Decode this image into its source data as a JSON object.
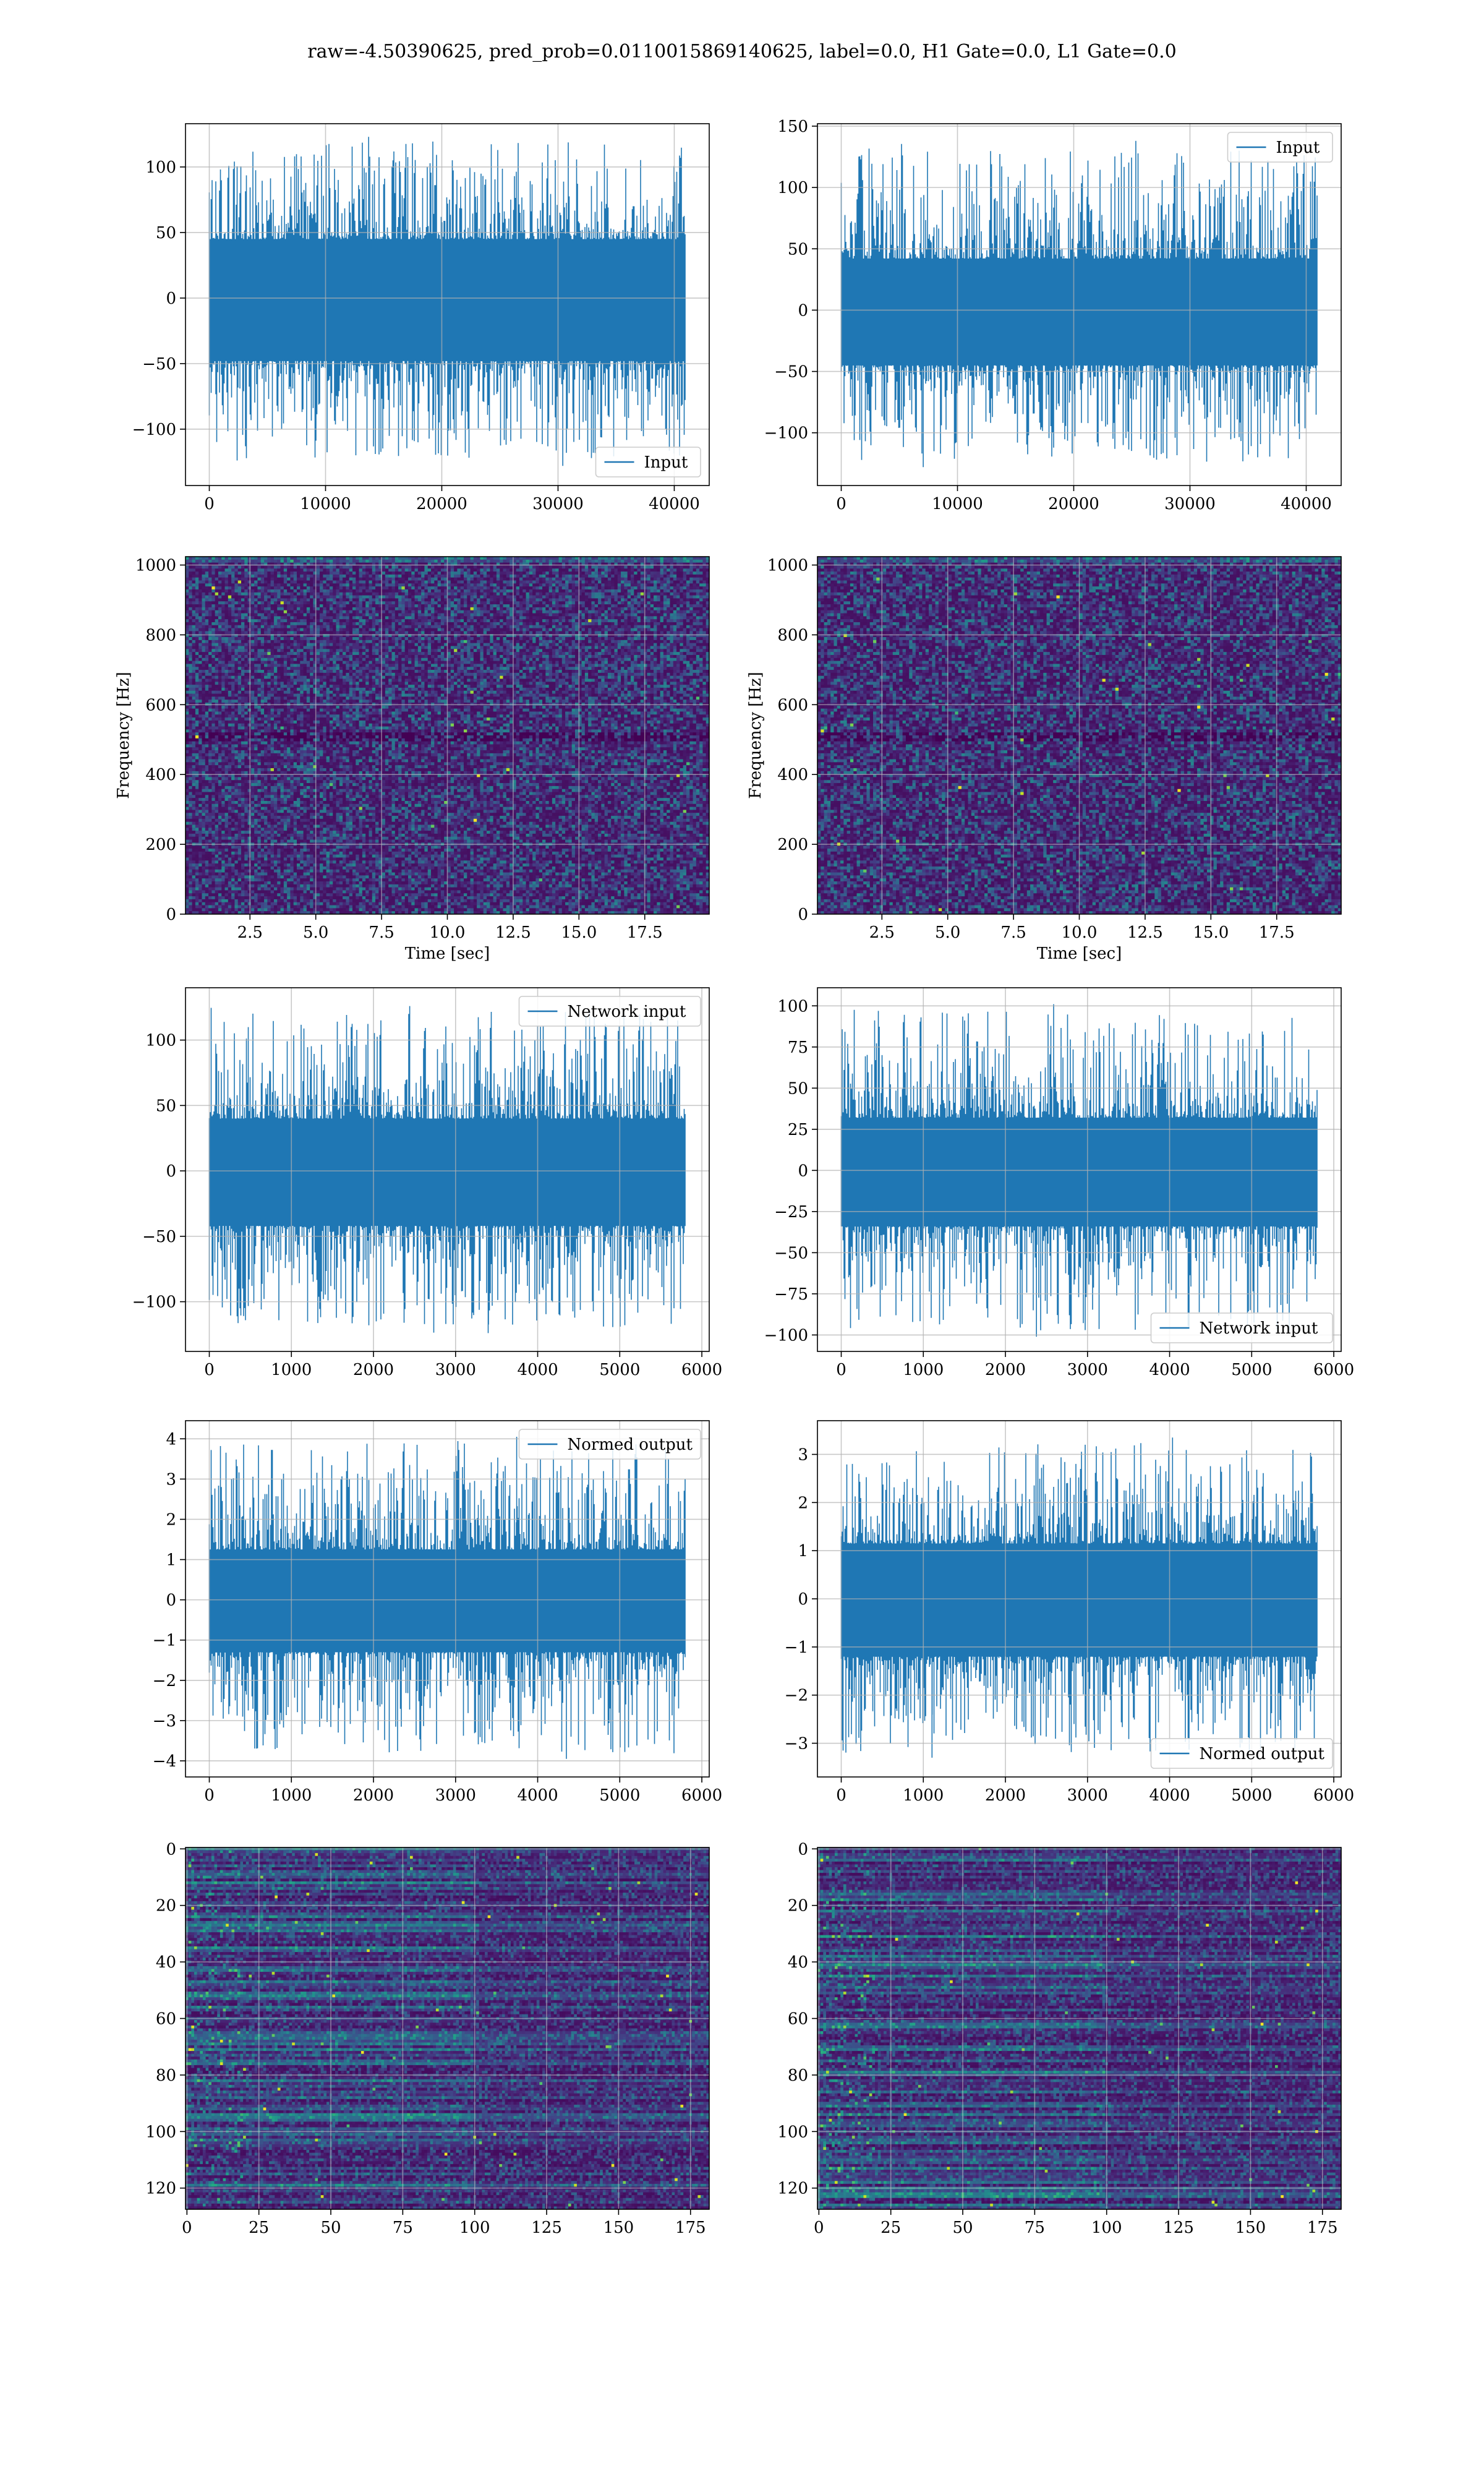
{
  "figure": {
    "suptitle": "raw=-4.50390625, pred_prob=0.0110015869140625, label=0.0, H1 Gate=0.0, L1 Gate=0.0",
    "line_color": "#1f77b4",
    "grid_color": "#b0b0b0"
  },
  "chart_data": [
    {
      "type": "line",
      "row": 1,
      "col": 1,
      "title": "",
      "xlabel": "",
      "ylabel": "",
      "xlim": [
        -2048,
        43008
      ],
      "ylim": [
        -143,
        133
      ],
      "xticks": [
        0,
        10000,
        20000,
        30000,
        40000
      ],
      "yticks": [
        -100,
        -50,
        0,
        50,
        100
      ],
      "legend": {
        "position": "lower-right",
        "entries": [
          "Input"
        ]
      },
      "grid": true,
      "series": [
        {
          "name": "Input",
          "n_points": 40960,
          "x_start": 0,
          "x_end": 40960,
          "band": [
            -48,
            45
          ],
          "peak_max": 123,
          "peak_min": -128
        }
      ]
    },
    {
      "type": "line",
      "row": 1,
      "col": 2,
      "title": "",
      "xlabel": "",
      "ylabel": "",
      "xlim": [
        -2048,
        43008
      ],
      "ylim": [
        -143,
        152
      ],
      "xticks": [
        0,
        10000,
        20000,
        30000,
        40000
      ],
      "yticks": [
        -100,
        -50,
        0,
        50,
        100,
        150
      ],
      "legend": {
        "position": "upper-right",
        "entries": [
          "Input"
        ]
      },
      "grid": true,
      "series": [
        {
          "name": "Input",
          "n_points": 40960,
          "x_start": 0,
          "x_end": 40960,
          "band": [
            -45,
            42
          ],
          "peak_max": 138,
          "peak_min": -128
        }
      ]
    },
    {
      "type": "heatmap",
      "subtype": "spectrogram",
      "row": 2,
      "col": 1,
      "title": "",
      "xlabel": "Time [sec]",
      "ylabel": "Frequency [Hz]",
      "xlim": [
        0.05,
        19.95
      ],
      "ylim": [
        0,
        1024
      ],
      "xticks": [
        2.5,
        5.0,
        7.5,
        10.0,
        12.5,
        15.0,
        17.5
      ],
      "yticks": [
        0,
        200,
        400,
        600,
        800,
        1000
      ],
      "colormap": "viridis",
      "grid": true
    },
    {
      "type": "heatmap",
      "subtype": "spectrogram",
      "row": 2,
      "col": 2,
      "title": "",
      "xlabel": "Time [sec]",
      "ylabel": "Frequency [Hz]",
      "xlim": [
        0.05,
        19.95
      ],
      "ylim": [
        0,
        1024
      ],
      "xticks": [
        2.5,
        5.0,
        7.5,
        10.0,
        12.5,
        15.0,
        17.5
      ],
      "yticks": [
        0,
        200,
        400,
        600,
        800,
        1000
      ],
      "colormap": "viridis",
      "grid": true
    },
    {
      "type": "line",
      "row": 3,
      "col": 1,
      "title": "",
      "xlabel": "",
      "ylabel": "",
      "xlim": [
        -290,
        6090
      ],
      "ylim": [
        -138,
        140
      ],
      "xticks": [
        0,
        1000,
        2000,
        3000,
        4000,
        5000,
        6000
      ],
      "yticks": [
        -100,
        -50,
        0,
        50,
        100
      ],
      "legend": {
        "position": "upper-right",
        "entries": [
          "Network input"
        ]
      },
      "grid": true,
      "series": [
        {
          "name": "Network input",
          "n_points": 5800,
          "x_start": 0,
          "x_end": 5800,
          "band": [
            -42,
            40
          ],
          "peak_max": 126,
          "peak_min": -124
        }
      ]
    },
    {
      "type": "line",
      "row": 3,
      "col": 2,
      "title": "",
      "xlabel": "",
      "ylabel": "",
      "xlim": [
        -290,
        6090
      ],
      "ylim": [
        -110,
        111
      ],
      "xticks": [
        0,
        1000,
        2000,
        3000,
        4000,
        5000,
        6000
      ],
      "yticks": [
        -100,
        -75,
        -50,
        -25,
        0,
        25,
        50,
        75,
        100
      ],
      "legend": {
        "position": "lower-right",
        "entries": [
          "Network input"
        ]
      },
      "grid": true,
      "series": [
        {
          "name": "Network input",
          "n_points": 5800,
          "x_start": 0,
          "x_end": 5800,
          "band": [
            -34,
            32
          ],
          "peak_max": 101,
          "peak_min": -101
        }
      ]
    },
    {
      "type": "line",
      "row": 4,
      "col": 1,
      "title": "",
      "xlabel": "",
      "ylabel": "",
      "xlim": [
        -290,
        6090
      ],
      "ylim": [
        -4.4,
        4.45
      ],
      "xticks": [
        0,
        1000,
        2000,
        3000,
        4000,
        5000,
        6000
      ],
      "yticks": [
        -4,
        -3,
        -2,
        -1,
        0,
        1,
        2,
        3,
        4
      ],
      "legend": {
        "position": "upper-right",
        "entries": [
          "Normed output"
        ]
      },
      "grid": true,
      "series": [
        {
          "name": "Normed output",
          "n_points": 5800,
          "x_start": 0,
          "x_end": 5800,
          "band": [
            -1.3,
            1.25
          ],
          "peak_max": 4.05,
          "peak_min": -3.95
        }
      ]
    },
    {
      "type": "line",
      "row": 4,
      "col": 2,
      "title": "",
      "xlabel": "",
      "ylabel": "",
      "xlim": [
        -290,
        6090
      ],
      "ylim": [
        -3.7,
        3.7
      ],
      "xticks": [
        0,
        1000,
        2000,
        3000,
        4000,
        5000,
        6000
      ],
      "yticks": [
        -3,
        -2,
        -1,
        0,
        1,
        2,
        3
      ],
      "legend": {
        "position": "lower-right",
        "entries": [
          "Normed output"
        ]
      },
      "grid": true,
      "series": [
        {
          "name": "Normed output",
          "n_points": 5800,
          "x_start": 0,
          "x_end": 5800,
          "band": [
            -1.2,
            1.15
          ],
          "peak_max": 3.35,
          "peak_min": -3.3
        }
      ]
    },
    {
      "type": "heatmap",
      "row": 5,
      "col": 1,
      "title": "",
      "xlabel": "",
      "ylabel": "",
      "xlim": [
        -0.5,
        181.5
      ],
      "ylim": [
        127.5,
        -0.5
      ],
      "xticks": [
        0,
        25,
        50,
        75,
        100,
        125,
        150,
        175
      ],
      "yticks": [
        0,
        20,
        40,
        60,
        80,
        100,
        120
      ],
      "n_rows": 128,
      "n_cols": 182,
      "colormap": "viridis",
      "grid": true
    },
    {
      "type": "heatmap",
      "row": 5,
      "col": 2,
      "title": "",
      "xlabel": "",
      "ylabel": "",
      "xlim": [
        -0.5,
        181.5
      ],
      "ylim": [
        127.5,
        -0.5
      ],
      "xticks": [
        0,
        25,
        50,
        75,
        100,
        125,
        150,
        175
      ],
      "yticks": [
        0,
        20,
        40,
        60,
        80,
        100,
        120
      ],
      "n_rows": 128,
      "n_cols": 182,
      "colormap": "viridis",
      "grid": true
    }
  ]
}
